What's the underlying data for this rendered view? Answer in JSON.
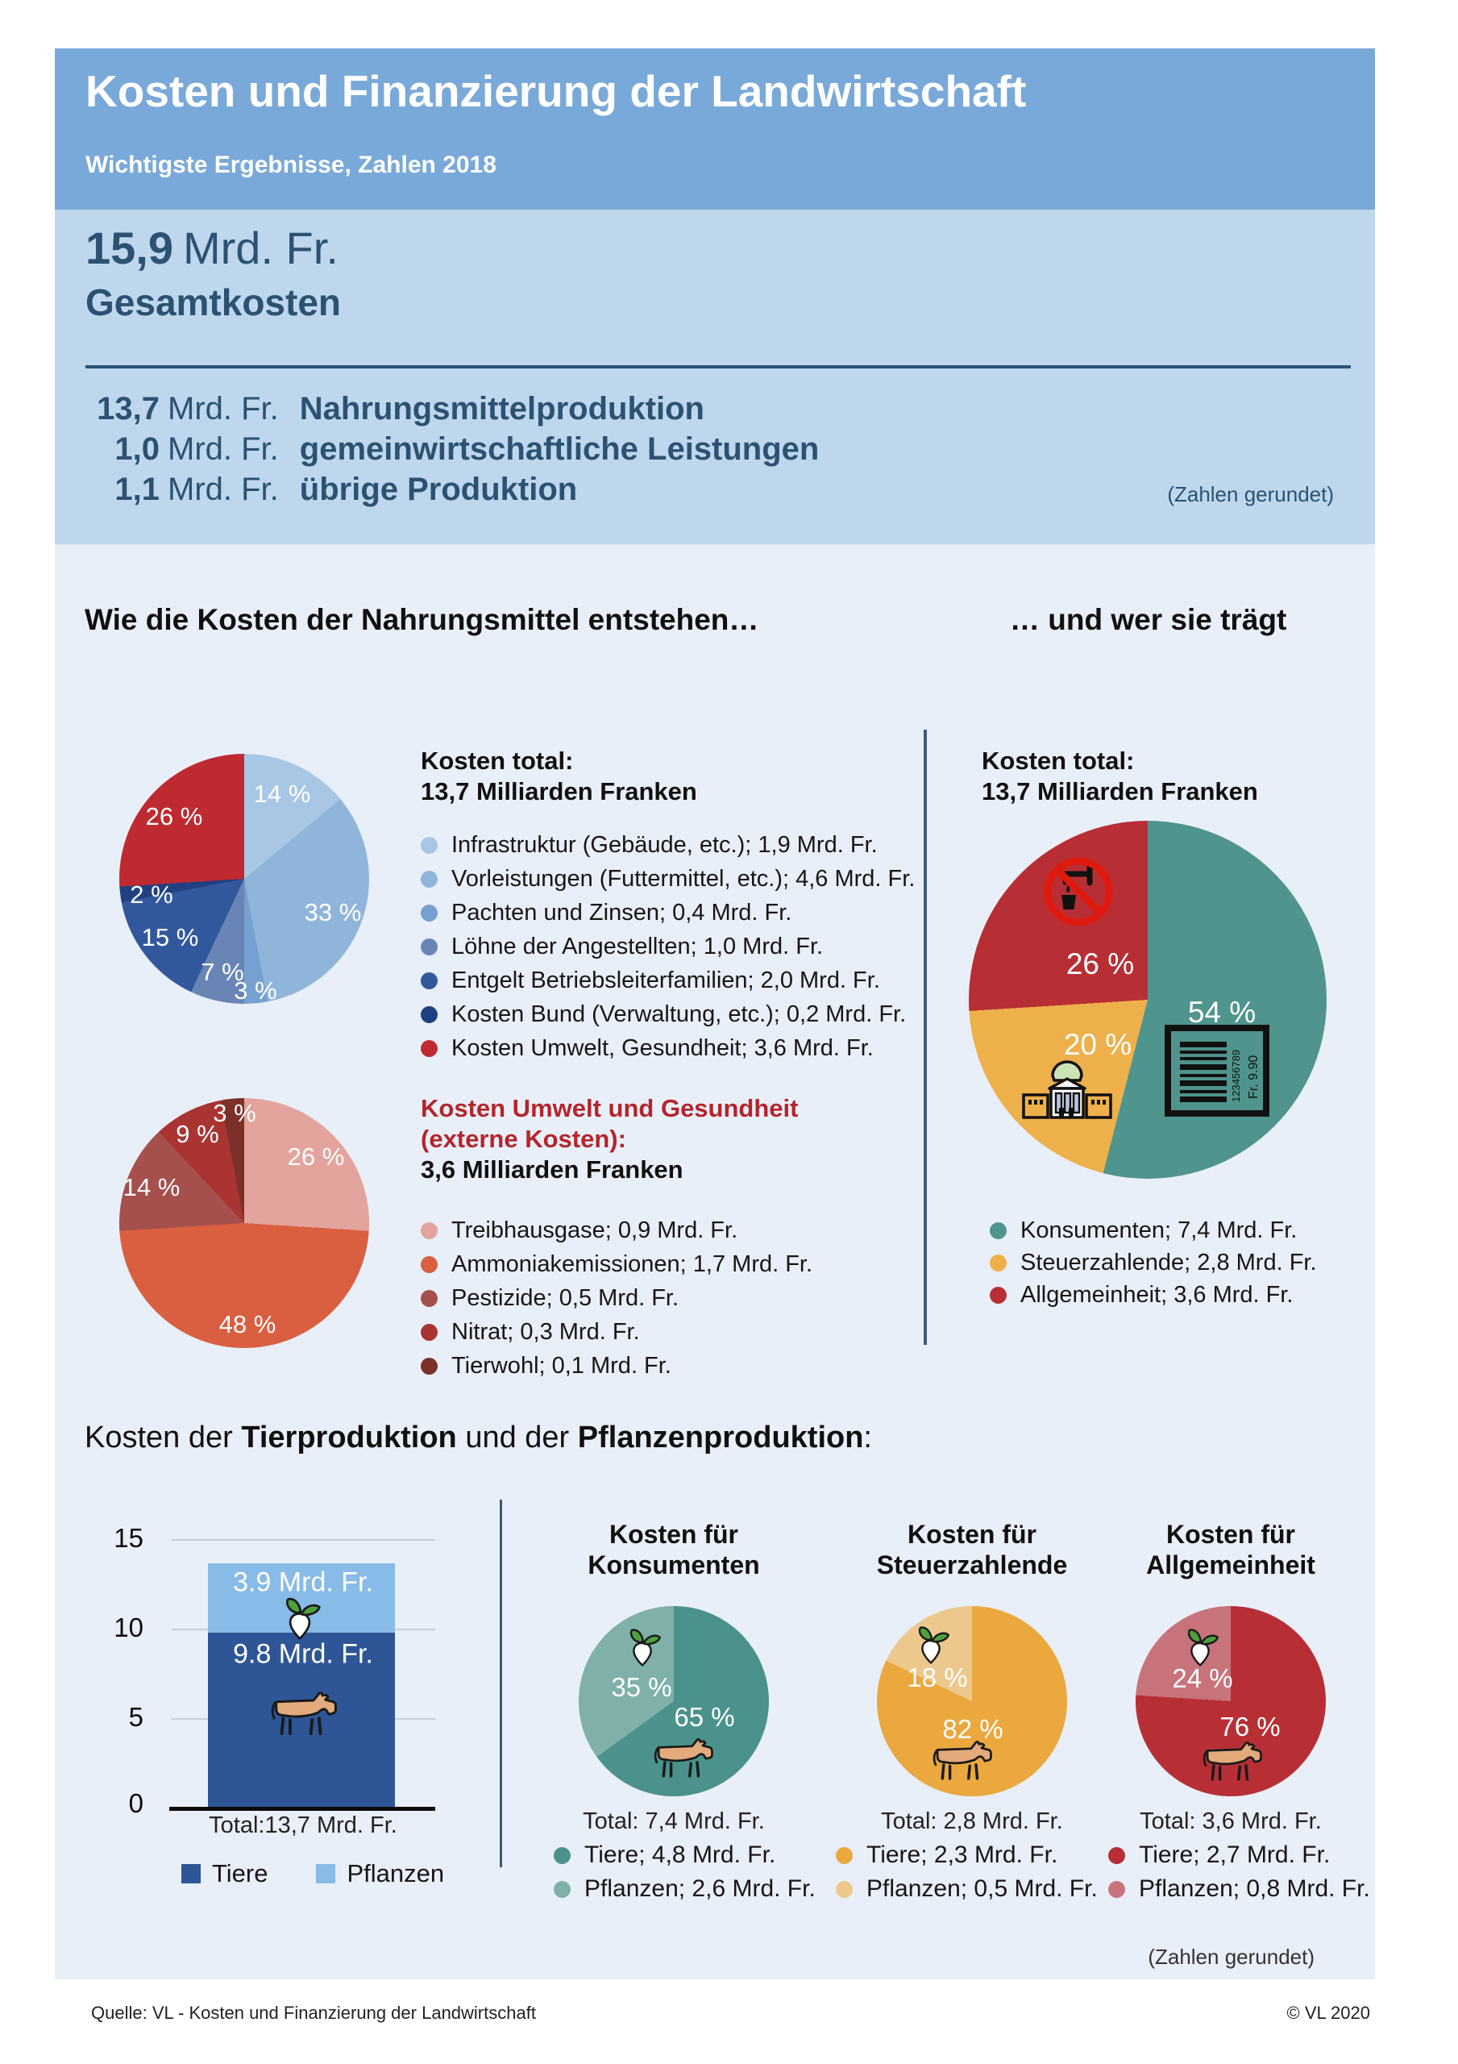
{
  "header": {
    "title": "Kosten und Finanzierung der Landwirtschaft",
    "subtitle": "Wichtigste Ergebnisse, Zahlen 2018"
  },
  "summary": {
    "total_value": "15,9",
    "total_unit": "Mrd. Fr.",
    "total_label": "Gesamtkosten",
    "rows": [
      {
        "value": "13,7",
        "unit": "Mrd. Fr.",
        "label": "Nahrungsmittelproduktion"
      },
      {
        "value": "1,0",
        "unit": "Mrd. Fr.",
        "label": "gemeinwirtschaftliche Leistungen"
      },
      {
        "value": "1,1",
        "unit": "Mrd. Fr.",
        "label": "übrige Produktion"
      }
    ],
    "note": "(Zahlen gerundet)"
  },
  "section_headings": {
    "left": "Wie die Kosten der Nahrungsmittel entstehen…",
    "right": "… und wer sie trägt"
  },
  "mid_heading": {
    "part1": "Kosten der ",
    "bold1": "Tierproduktion",
    "part2": " und der ",
    "bold2": "Pflanzenproduktion",
    "part3": ":"
  },
  "footer": {
    "source": "Quelle: VL - Kosten und Finanzierung der Landwirtschaft",
    "copyright": "© VL 2020",
    "note": "(Zahlen gerundet)"
  },
  "chart_data": [
    {
      "id": "cost_origin_pie",
      "type": "pie",
      "title": "Kosten total:",
      "subtitle": "13,7 Milliarden Franken",
      "unit": "Mrd. Fr.",
      "slices": [
        {
          "label": "Infrastruktur (Gebäude, etc.)",
          "value": 1.9,
          "pct": 14,
          "pct_label": "14 %",
          "color": "#a8c7e5",
          "display": "Infrastruktur (Gebäude, etc.); 1,9 Mrd. Fr."
        },
        {
          "label": "Vorleistungen (Futtermittel, etc.)",
          "value": 4.6,
          "pct": 33,
          "pct_label": "33 %",
          "color": "#8fb5db",
          "display": "Vorleistungen (Futtermittel, etc.); 4,6 Mrd. Fr."
        },
        {
          "label": "Pachten und Zinsen",
          "value": 0.4,
          "pct": 3,
          "pct_label": "3 %",
          "color": "#76a0d0",
          "display": "Pachten und Zinsen; 0,4 Mrd. Fr."
        },
        {
          "label": "Löhne der Angestellten",
          "value": 1.0,
          "pct": 7,
          "pct_label": "7 %",
          "color": "#6985b6",
          "display": "Löhne der Angestellten; 1,0 Mrd. Fr."
        },
        {
          "label": "Entgelt Betriebsleiterfamilien",
          "value": 2.0,
          "pct": 15,
          "pct_label": "15 %",
          "color": "#31589d",
          "display": "Entgelt Betriebsleiterfamilien; 2,0 Mrd. Fr."
        },
        {
          "label": "Kosten Bund (Verwaltung, etc.)",
          "value": 0.2,
          "pct": 2,
          "pct_label": "2 %",
          "color": "#204080",
          "display": "Kosten Bund (Verwaltung, etc.); 0,2 Mrd. Fr."
        },
        {
          "label": "Kosten Umwelt, Gesundheit",
          "value": 3.6,
          "pct": 26,
          "pct_label": "26 %",
          "color": "#bf2a31",
          "display": "Kosten Umwelt, Gesundheit; 3,6 Mrd. Fr."
        }
      ]
    },
    {
      "id": "external_costs_pie",
      "type": "pie",
      "title_line1": "Kosten Umwelt und Gesundheit",
      "title_line2": "(externe Kosten):",
      "subtitle": "3,6 Milliarden Franken",
      "unit": "Mrd. Fr.",
      "slices": [
        {
          "label": "Treibhausgase",
          "value": 0.9,
          "pct": 26,
          "pct_label": "26 %",
          "color": "#e2a49c",
          "display": "Treibhausgase; 0,9 Mrd. Fr."
        },
        {
          "label": "Ammoniakemissionen",
          "value": 1.7,
          "pct": 48,
          "pct_label": "48 %",
          "color": "#d95f40",
          "display": "Ammoniakemissionen; 1,7 Mrd. Fr."
        },
        {
          "label": "Pestizide",
          "value": 0.5,
          "pct": 14,
          "pct_label": "14 %",
          "color": "#a5504c",
          "display": "Pestizide; 0,5 Mrd. Fr."
        },
        {
          "label": "Nitrat",
          "value": 0.3,
          "pct": 9,
          "pct_label": "9 %",
          "color": "#a93431",
          "display": "Nitrat; 0,3 Mrd. Fr."
        },
        {
          "label": "Tierwohl",
          "value": 0.1,
          "pct": 3,
          "pct_label": "3 %",
          "color": "#7c3029",
          "display": "Tierwohl; 0,1 Mrd. Fr."
        }
      ]
    },
    {
      "id": "payers_pie",
      "type": "pie",
      "title": "Kosten total:",
      "subtitle": "13,7 Milliarden Franken",
      "unit": "Mrd. Fr.",
      "barcode_number": "123456789",
      "barcode_price": "Fr. 9.90",
      "slices": [
        {
          "label": "Konsumenten",
          "value": 7.4,
          "pct": 54,
          "pct_label": "54 %",
          "color": "#4f948d",
          "display": "Konsumenten; 7,4 Mrd. Fr."
        },
        {
          "label": "Steuerzahlende",
          "value": 2.8,
          "pct": 20,
          "pct_label": "20 %",
          "color": "#edb04b",
          "display": "Steuerzahlende; 2,8 Mrd. Fr."
        },
        {
          "label": "Allgemeinheit",
          "value": 3.6,
          "pct": 26,
          "pct_label": "26 %",
          "color": "#b72f35",
          "display": "Allgemeinheit; 3,6 Mrd. Fr."
        }
      ]
    },
    {
      "id": "production_costs_bar",
      "type": "bar",
      "stacked": true,
      "categories": [
        "Total"
      ],
      "ylim": [
        0,
        15
      ],
      "ytick_labels": [
        "0",
        "5",
        "10",
        "15"
      ],
      "total_label": "Total:13,7 Mrd. Fr.",
      "series": [
        {
          "name": "Tiere",
          "value": 9.8,
          "label": "9.8 Mrd. Fr.",
          "color": "#2e5697"
        },
        {
          "name": "Pflanzen",
          "value": 3.9,
          "label": "3.9 Mrd. Fr.",
          "color": "#88bbe7"
        }
      ]
    },
    {
      "id": "consumers_split_pie",
      "type": "pie",
      "title_line1": "Kosten für",
      "title_line2": "Konsumenten",
      "total_label": "Total: 7,4 Mrd. Fr.",
      "slices": [
        {
          "label": "Tiere",
          "value": 4.8,
          "pct": 65,
          "pct_label": "65 %",
          "color": "#4a928b",
          "display": "Tiere; 4,8 Mrd. Fr."
        },
        {
          "label": "Pflanzen",
          "value": 2.6,
          "pct": 35,
          "pct_label": "35 %",
          "color": "#7fb0aa",
          "display": "Pflanzen; 2,6 Mrd. Fr."
        }
      ]
    },
    {
      "id": "taxpayers_split_pie",
      "type": "pie",
      "title_line1": "Kosten für",
      "title_line2": "Steuerzahlende",
      "total_label": "Total: 2,8 Mrd. Fr.",
      "slices": [
        {
          "label": "Tiere",
          "value": 2.3,
          "pct": 82,
          "pct_label": "82 %",
          "color": "#eaa83f",
          "display": "Tiere; 2,3 Mrd. Fr."
        },
        {
          "label": "Pflanzen",
          "value": 0.5,
          "pct": 18,
          "pct_label": "18 %",
          "color": "#edc88d",
          "display": "Pflanzen; 0,5 Mrd. Fr."
        }
      ]
    },
    {
      "id": "public_split_pie",
      "type": "pie",
      "title_line1": "Kosten für",
      "title_line2": "Allgemeinheit",
      "total_label": "Total: 3,6 Mrd. Fr.",
      "slices": [
        {
          "label": "Tiere",
          "value": 2.7,
          "pct": 76,
          "pct_label": "76 %",
          "color": "#b72f35",
          "display": "Tiere; 2,7 Mrd. Fr."
        },
        {
          "label": "Pflanzen",
          "value": 0.8,
          "pct": 24,
          "pct_label": "24 %",
          "color": "#c8737b",
          "display": "Pflanzen; 0,8 Mrd. Fr."
        }
      ]
    }
  ]
}
